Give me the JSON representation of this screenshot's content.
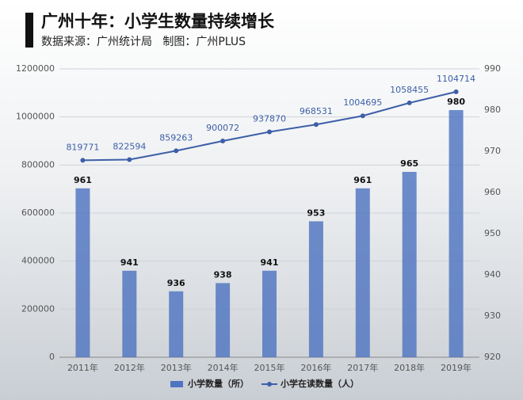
{
  "chart_data": {
    "type": "combo",
    "title": "广州十年：小学生数量持续增长",
    "subtitle": "数据来源：广州统计局   制图：广州PLUS",
    "categories": [
      "2011年",
      "2012年",
      "2013年",
      "2014年",
      "2015年",
      "2016年",
      "2017年",
      "2018年",
      "2019年"
    ],
    "series": [
      {
        "name": "小学数量（所）",
        "type": "bar",
        "axis": "y2",
        "color": "#4f74c0",
        "values": [
          961,
          941,
          936,
          938,
          941,
          953,
          961,
          965,
          980
        ]
      },
      {
        "name": "小学在读数量（人）",
        "type": "line",
        "color": "#3d5fa8",
        "values": [
          819771,
          822594,
          859263,
          900072,
          937870,
          968531,
          1004695,
          1058455,
          1104714
        ]
      }
    ],
    "ylim": [
      0,
      1200000
    ],
    "yticks": [
      0,
      200000,
      400000,
      600000,
      800000,
      1000000,
      1200000
    ],
    "y2lim": [
      920,
      990
    ],
    "y2ticks": [
      920,
      930,
      940,
      950,
      960,
      970,
      980,
      990
    ],
    "grid": true,
    "legend": "bottom"
  }
}
